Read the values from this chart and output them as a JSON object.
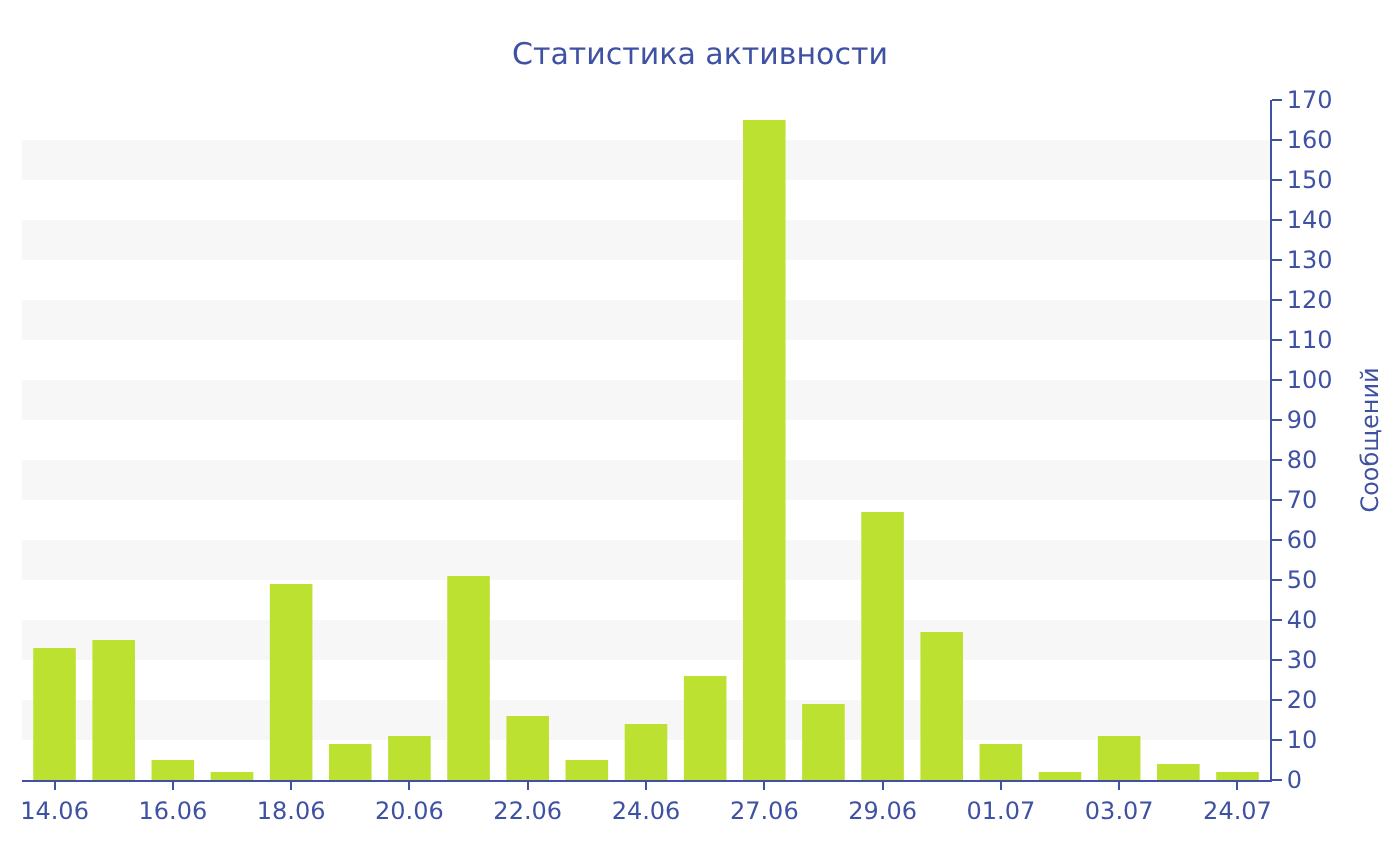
{
  "chart_data": {
    "type": "bar",
    "title": "Статистика активности",
    "ylabel": "Сообщений",
    "categories": [
      "14.06",
      null,
      "16.06",
      null,
      "18.06",
      null,
      "20.06",
      null,
      "22.06",
      null,
      "24.06",
      null,
      "27.06",
      null,
      "29.06",
      null,
      "01.07",
      null,
      "03.07",
      null,
      "24.07"
    ],
    "values": [
      33,
      35,
      5,
      2,
      49,
      9,
      11,
      51,
      16,
      5,
      14,
      26,
      165,
      19,
      67,
      37,
      9,
      2,
      11,
      4,
      2
    ],
    "color": "#bce130",
    "ylim": [
      0,
      170
    ],
    "yticks": [
      0,
      10,
      20,
      30,
      40,
      50,
      60,
      70,
      80,
      90,
      100,
      110,
      120,
      130,
      140,
      150,
      160,
      170
    ]
  }
}
